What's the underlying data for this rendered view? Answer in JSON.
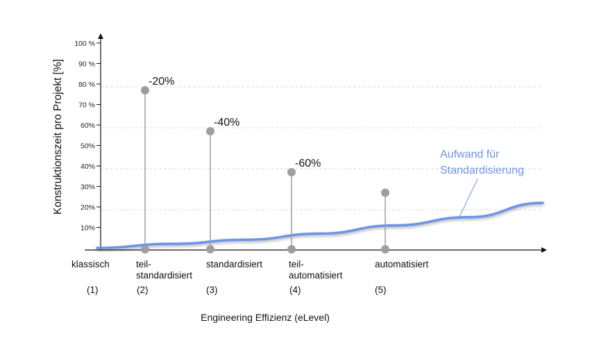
{
  "chart_data": {
    "type": "scatter",
    "title": "",
    "xlabel": "Engineering Effizienz (eLevel)",
    "ylabel": "Konstruktionszeit pro Projekt [%]",
    "ylim": [
      0,
      100
    ],
    "yticks": [
      "10%",
      "20%",
      "30%",
      "40%",
      "50%",
      "60%",
      "70 %",
      "80 %",
      "90 %",
      "100 %"
    ],
    "grid": "dashed at 20% and 40%, 60%, 80% levels",
    "categories": [
      {
        "lines": [
          "klassisch"
        ],
        "num": "(1)"
      },
      {
        "lines": [
          "teil-",
          "standardisiert"
        ],
        "num": "(2)"
      },
      {
        "lines": [
          "standardisiert"
        ],
        "num": "(3)"
      },
      {
        "lines": [
          "teil-",
          "automatisiert"
        ],
        "num": "(4)"
      },
      {
        "lines": [
          "automatisiert"
        ],
        "num": "(5)"
      }
    ],
    "series": [
      {
        "values": [
          80,
          60,
          40,
          30
        ],
        "level_labels": [
          "-20%",
          "-40%",
          "-60%",
          ""
        ]
      }
    ],
    "curve": {
      "name": "Aufwand für Standardisierung",
      "label_lines": [
        "Aufwand für",
        "Standardisierung"
      ],
      "values": [
        1,
        3,
        5,
        8,
        12,
        16,
        23
      ],
      "color": "#6b93e8"
    },
    "colors": {
      "stem": "#9e9e9e",
      "grid": "#d8d8d8",
      "axis": "#111111",
      "curve": "#6b93e8"
    }
  }
}
